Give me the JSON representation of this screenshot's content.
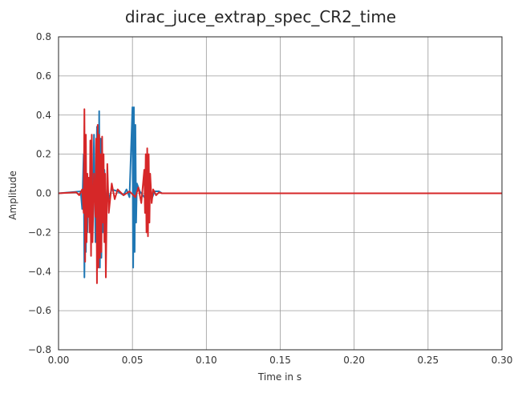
{
  "chart_data": {
    "type": "line",
    "title": "dirac_juce_extrap_spec_CR2_time",
    "xlabel": "Time in s",
    "ylabel": "Amplitude",
    "xlim": [
      0.0,
      0.3
    ],
    "ylim": [
      -0.8,
      0.8
    ],
    "grid": true,
    "legend": "none",
    "x_ticks": [
      "0.00",
      "0.05",
      "0.10",
      "0.15",
      "0.20",
      "0.25",
      "0.30"
    ],
    "y_ticks": [
      "0.8",
      "0.6",
      "0.4",
      "0.2",
      "0.0",
      "−0.2",
      "−0.4",
      "−0.6",
      "−0.8"
    ],
    "series": [
      {
        "color": "#1f77b4",
        "x": [
          0.0,
          0.015,
          0.016,
          0.017,
          0.0175,
          0.018,
          0.0185,
          0.019,
          0.0195,
          0.02,
          0.021,
          0.022,
          0.023,
          0.024,
          0.025,
          0.026,
          0.027,
          0.0275,
          0.028,
          0.0285,
          0.029,
          0.0295,
          0.03,
          0.031,
          0.032,
          0.033,
          0.034,
          0.036,
          0.04,
          0.044,
          0.046,
          0.048,
          0.05,
          0.0505,
          0.051,
          0.0515,
          0.052,
          0.0525,
          0.053,
          0.055,
          0.058,
          0.06,
          0.061,
          0.062,
          0.063,
          0.065,
          0.068,
          0.07,
          0.3
        ],
        "y": [
          0.0,
          0.01,
          -0.08,
          0.2,
          -0.43,
          0.15,
          -0.3,
          0.1,
          -0.2,
          0.08,
          -0.15,
          0.25,
          -0.2,
          0.3,
          -0.25,
          0.34,
          -0.33,
          0.42,
          -0.38,
          0.28,
          -0.33,
          0.22,
          -0.2,
          0.12,
          -0.1,
          0.05,
          -0.03,
          0.02,
          0.01,
          -0.01,
          0.02,
          -0.02,
          0.44,
          -0.38,
          0.44,
          -0.3,
          0.35,
          -0.15,
          0.05,
          0.01,
          -0.02,
          0.03,
          -0.05,
          0.04,
          -0.03,
          0.01,
          0.01,
          0.0,
          0.0
        ]
      },
      {
        "color": "#d62728",
        "x": [
          0.0,
          0.012,
          0.014,
          0.016,
          0.017,
          0.0175,
          0.018,
          0.0185,
          0.019,
          0.0195,
          0.02,
          0.0205,
          0.021,
          0.0215,
          0.022,
          0.0225,
          0.023,
          0.024,
          0.025,
          0.0255,
          0.026,
          0.0265,
          0.027,
          0.0275,
          0.028,
          0.0285,
          0.029,
          0.0295,
          0.03,
          0.0305,
          0.031,
          0.0315,
          0.032,
          0.033,
          0.034,
          0.036,
          0.038,
          0.04,
          0.044,
          0.048,
          0.052,
          0.054,
          0.056,
          0.058,
          0.0585,
          0.059,
          0.0595,
          0.06,
          0.0605,
          0.061,
          0.0615,
          0.062,
          0.063,
          0.064,
          0.066,
          0.068,
          0.07,
          0.3
        ],
        "y": [
          0.0,
          0.005,
          -0.01,
          0.02,
          -0.1,
          0.43,
          -0.35,
          0.3,
          -0.25,
          0.1,
          -0.12,
          0.08,
          -0.2,
          0.27,
          -0.32,
          0.3,
          -0.25,
          0.1,
          -0.12,
          0.28,
          -0.46,
          0.35,
          -0.38,
          0.3,
          -0.33,
          0.2,
          -0.3,
          0.29,
          -0.15,
          0.2,
          -0.25,
          0.1,
          -0.43,
          0.15,
          -0.1,
          0.05,
          -0.03,
          0.02,
          -0.01,
          0.01,
          -0.02,
          0.03,
          -0.05,
          0.12,
          -0.1,
          0.2,
          -0.2,
          0.23,
          -0.22,
          0.2,
          -0.15,
          0.1,
          -0.05,
          0.02,
          -0.01,
          0.005,
          0.0,
          0.0
        ]
      }
    ]
  }
}
